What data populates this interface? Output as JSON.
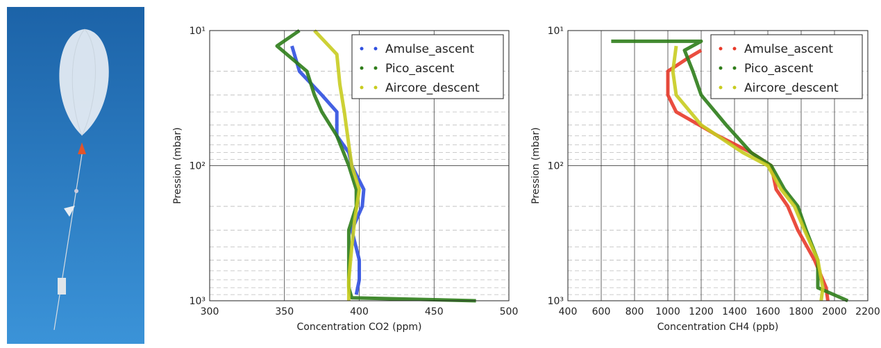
{
  "chart_data": [
    {
      "type": "line",
      "x_label": "Concentration CO2 (ppm)",
      "y_label": "Pression (mbar)",
      "xlim": [
        300,
        500
      ],
      "xticks": [
        300,
        350,
        400,
        450,
        500
      ],
      "ylim": [
        10,
        1000
      ],
      "y_log": true,
      "y_inverted": true,
      "yticks": [
        {
          "value": 10,
          "label": "10¹"
        },
        {
          "value": 100,
          "label": "10²"
        },
        {
          "value": 1000,
          "label": "10³"
        }
      ],
      "yminorticks": [
        20,
        30,
        40,
        50,
        60,
        70,
        80,
        90,
        200,
        300,
        400,
        500,
        600,
        700,
        800,
        900
      ],
      "grid": true,
      "legend": "upper right",
      "series": [
        {
          "name": "Amulse_ascent",
          "color": "#3050e0",
          "x": [
            355,
            360,
            375,
            385,
            385,
            393,
            395,
            403,
            402,
            395,
            400,
            400,
            398
          ],
          "y": [
            13,
            20,
            30,
            40,
            60,
            80,
            100,
            150,
            200,
            300,
            500,
            700,
            900
          ]
        },
        {
          "name": "Pico_ascent",
          "color": "#2e7d1a",
          "x": [
            360,
            345,
            365,
            370,
            375,
            385,
            393,
            398,
            398,
            393,
            393,
            393,
            395,
            478
          ],
          "y": [
            10,
            13,
            20,
            30,
            40,
            60,
            100,
            150,
            200,
            300,
            500,
            800,
            950,
            1000
          ]
        },
        {
          "name": "Aircore_descent",
          "color": "#c8cc20",
          "x": [
            370,
            385,
            387,
            390,
            393,
            395,
            400,
            397,
            395,
            393,
            393
          ],
          "y": [
            10,
            15,
            25,
            40,
            70,
            100,
            150,
            250,
            400,
            700,
            1000
          ]
        }
      ]
    },
    {
      "type": "line",
      "x_label": "Concentration CH4 (ppb)",
      "y_label": "Pression (mbar)",
      "xlim": [
        400,
        2200
      ],
      "xticks": [
        400,
        600,
        800,
        1000,
        1200,
        1400,
        1600,
        1800,
        2000,
        2200
      ],
      "ylim": [
        10,
        1000
      ],
      "y_log": true,
      "y_inverted": true,
      "yticks": [
        {
          "value": 10,
          "label": "10¹"
        },
        {
          "value": 100,
          "label": "10²"
        },
        {
          "value": 1000,
          "label": "10³"
        }
      ],
      "yminorticks": [
        20,
        30,
        40,
        50,
        60,
        70,
        80,
        90,
        200,
        300,
        400,
        500,
        600,
        700,
        800,
        900
      ],
      "grid": true,
      "legend": "upper right",
      "series": [
        {
          "name": "Amulse_ascent",
          "color": "#e83a2a",
          "x": [
            1200,
            1120,
            1000,
            1000,
            1050,
            1300,
            1500,
            1620,
            1650,
            1720,
            1780,
            1880,
            1950,
            1960
          ],
          "y": [
            14,
            16,
            20,
            30,
            40,
            60,
            80,
            100,
            150,
            200,
            300,
            500,
            800,
            1000
          ]
        },
        {
          "name": "Pico_ascent",
          "color": "#2e7d1a",
          "x": [
            660,
            1200,
            1100,
            1150,
            1200,
            1350,
            1500,
            1620,
            1700,
            1780,
            1830,
            1900,
            1900,
            2080
          ],
          "y": [
            12,
            12,
            14,
            20,
            30,
            50,
            80,
            100,
            150,
            200,
            300,
            500,
            800,
            1000
          ]
        },
        {
          "name": "Aircore_descent",
          "color": "#c8cc20",
          "x": [
            1050,
            1030,
            1050,
            1200,
            1450,
            1600,
            1680,
            1760,
            1820,
            1900,
            1930,
            1920
          ],
          "y": [
            13,
            20,
            30,
            50,
            80,
            100,
            150,
            200,
            300,
            500,
            800,
            1000
          ]
        }
      ]
    }
  ]
}
